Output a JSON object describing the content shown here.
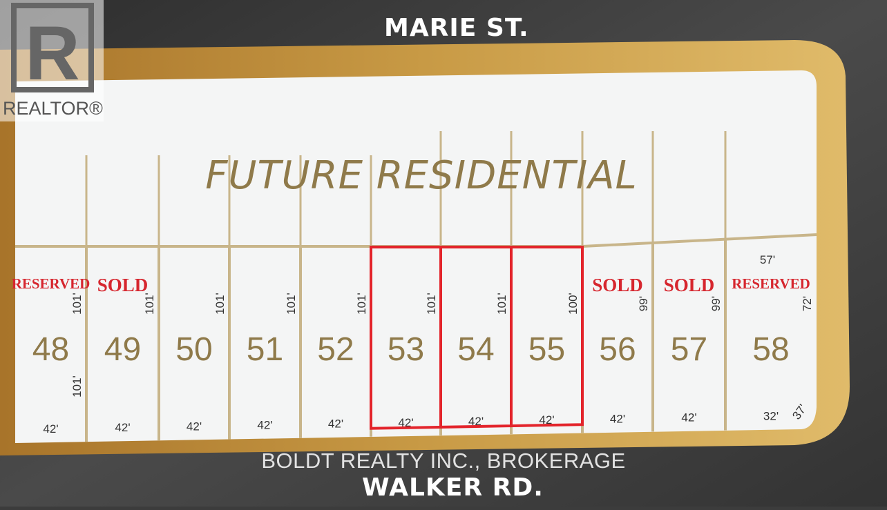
{
  "streets": {
    "north": "MARIE ST.",
    "south": "WALKER RD."
  },
  "area_label": "FUTURE RESIDENTIAL",
  "watermark": {
    "logo_text": "REALTOR®",
    "brokerage": "BOLDT REALTY INC., BROKERAGE"
  },
  "colors": {
    "frame": "#b8862e",
    "lot_lines": "#c8b58a",
    "lot_number": "#8f7a4a",
    "status": "#d6262e",
    "highlight": "#e3242b",
    "background": "#3c3c3c",
    "land": "#f4f5f5"
  },
  "lots": [
    {
      "number": "48",
      "status": "RESERVED",
      "frontage": "42'",
      "depth": "101'",
      "depth2": "101'",
      "highlighted": false
    },
    {
      "number": "49",
      "status": "SOLD",
      "frontage": "42'",
      "depth": "101'",
      "highlighted": false
    },
    {
      "number": "50",
      "status": "",
      "frontage": "42'",
      "depth": "101'",
      "highlighted": false
    },
    {
      "number": "51",
      "status": "",
      "frontage": "42'",
      "depth": "101'",
      "highlighted": false
    },
    {
      "number": "52",
      "status": "",
      "frontage": "42'",
      "depth": "101'",
      "highlighted": false
    },
    {
      "number": "53",
      "status": "",
      "frontage": "42'",
      "depth": "101'",
      "highlighted": true
    },
    {
      "number": "54",
      "status": "",
      "frontage": "42'",
      "depth": "101'",
      "highlighted": true
    },
    {
      "number": "55",
      "status": "",
      "frontage": "42'",
      "depth": "100'",
      "highlighted": true
    },
    {
      "number": "56",
      "status": "SOLD",
      "frontage": "42'",
      "depth": "99'",
      "highlighted": false
    },
    {
      "number": "57",
      "status": "SOLD",
      "frontage": "42'",
      "depth": "99'",
      "highlighted": false
    },
    {
      "number": "58",
      "status": "RESERVED",
      "frontage": "32'",
      "depth": "72'",
      "rear": "57'",
      "corner": "37'",
      "highlighted": false
    }
  ]
}
